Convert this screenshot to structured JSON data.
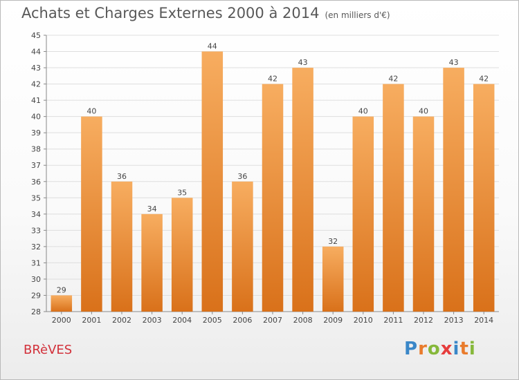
{
  "title": "Achats et Charges Externes 2000 à 2014",
  "unit": "(en milliers d'€)",
  "town": "BRèVES",
  "brand": {
    "letters": [
      "P",
      "r",
      "o",
      "x",
      "i",
      "t",
      "i"
    ],
    "colors": [
      "#3a87c8",
      "#e97b2c",
      "#86b83a",
      "#e63d3d",
      "#3a87c8",
      "#e97b2c",
      "#86b83a"
    ]
  },
  "chart_data": {
    "type": "bar",
    "title": "Achats et Charges Externes 2000 à 2014",
    "subtitle": "(en milliers d'€)",
    "categories": [
      "2000",
      "2001",
      "2002",
      "2003",
      "2004",
      "2005",
      "2006",
      "2007",
      "2008",
      "2009",
      "2010",
      "2011",
      "2012",
      "2013",
      "2014"
    ],
    "values": [
      29,
      40,
      36,
      34,
      35,
      44,
      36,
      42,
      43,
      32,
      40,
      42,
      40,
      43,
      42
    ],
    "ylim": [
      28,
      45
    ],
    "yticks": [
      28,
      29,
      30,
      31,
      32,
      33,
      34,
      35,
      36,
      37,
      38,
      39,
      40,
      41,
      42,
      43,
      44,
      45
    ],
    "grid": true,
    "bar_color": "#f0902f",
    "bar_color_light": "#f7ad60",
    "bar_color_dark": "#d9711a",
    "xlabel": "",
    "ylabel": ""
  }
}
